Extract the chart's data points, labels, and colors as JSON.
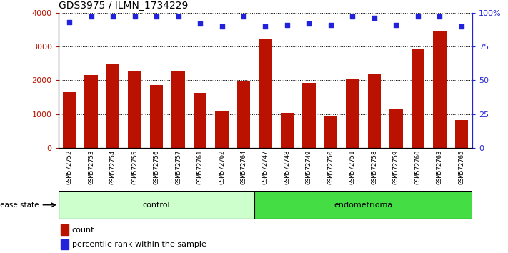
{
  "title": "GDS3975 / ILMN_1734229",
  "samples": [
    "GSM572752",
    "GSM572753",
    "GSM572754",
    "GSM572755",
    "GSM572756",
    "GSM572757",
    "GSM572761",
    "GSM572762",
    "GSM572764",
    "GSM572747",
    "GSM572748",
    "GSM572749",
    "GSM572750",
    "GSM572751",
    "GSM572758",
    "GSM572759",
    "GSM572760",
    "GSM572763",
    "GSM572765"
  ],
  "counts": [
    1650,
    2150,
    2500,
    2270,
    1870,
    2290,
    1620,
    1100,
    1960,
    3230,
    1040,
    1920,
    960,
    2050,
    2180,
    1140,
    2930,
    3450,
    830
  ],
  "percentiles": [
    93,
    97,
    97,
    97,
    97,
    97,
    92,
    90,
    97,
    90,
    91,
    92,
    91,
    97,
    96,
    91,
    97,
    97,
    90
  ],
  "n_control": 9,
  "n_endometrioma": 10,
  "bar_color": "#bb1100",
  "dot_color": "#2222dd",
  "control_color": "#ccffcc",
  "endometrioma_color": "#44dd44",
  "xticklabel_bg": "#cccccc",
  "plot_bg": "#ffffff",
  "ylim_left": [
    0,
    4000
  ],
  "ylim_right": [
    0,
    100
  ],
  "yticks_left": [
    0,
    1000,
    2000,
    3000,
    4000
  ],
  "ytick_labels_right": [
    "0",
    "25",
    "50",
    "75",
    "100%"
  ],
  "yticks_right": [
    0,
    25,
    50,
    75,
    100
  ]
}
